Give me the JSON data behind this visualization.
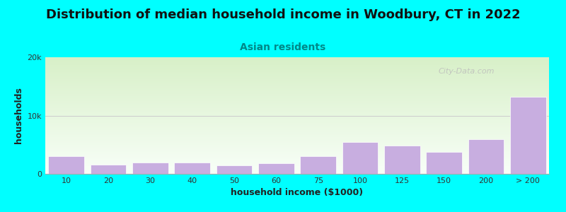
{
  "title": "Distribution of median household income in Woodbury, CT in 2022",
  "subtitle": "Asian residents",
  "xlabel": "household income ($1000)",
  "ylabel": "households",
  "categories": [
    "10",
    "20",
    "30",
    "40",
    "50",
    "60",
    "75",
    "100",
    "125",
    "150",
    "200",
    "> 200"
  ],
  "values": [
    3000,
    1600,
    2000,
    2000,
    1500,
    1800,
    3000,
    5500,
    4800,
    3800,
    6000,
    13200
  ],
  "bar_color": "#c8aee0",
  "bar_edgecolor": "#ffffff",
  "background_color": "#00ffff",
  "plot_bg_top": "#d8f0c8",
  "plot_bg_bottom": "#f8fff8",
  "ylim": [
    0,
    20000
  ],
  "yticks": [
    0,
    10000,
    20000
  ],
  "ytick_labels": [
    "0",
    "10k",
    "20k"
  ],
  "watermark": "City-Data.com",
  "title_fontsize": 13,
  "subtitle_fontsize": 10,
  "axis_label_fontsize": 9
}
